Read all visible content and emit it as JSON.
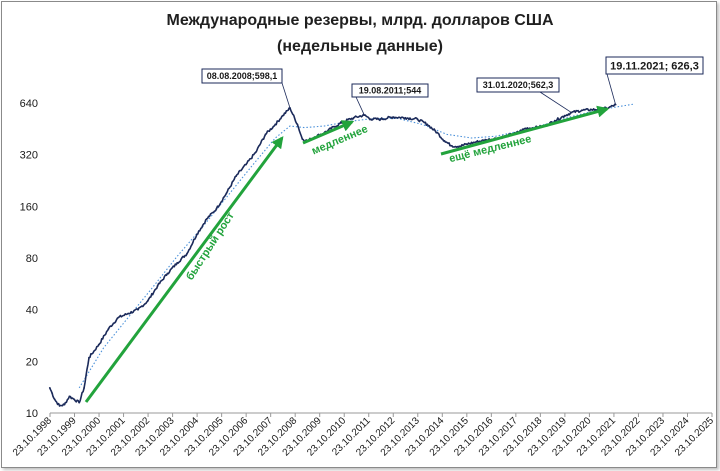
{
  "chart_data": {
    "type": "line",
    "title": "Международные резервы, млрд. долларов США",
    "subtitle": "(недельные данные)",
    "y_scale": "log2",
    "ylim": [
      10,
      640
    ],
    "y_ticks": [
      10,
      20,
      40,
      80,
      160,
      320,
      640
    ],
    "y_tick_labels": [
      "10",
      "20",
      "40",
      "80",
      "160",
      "320",
      "640"
    ],
    "x_tick_labels": [
      "23.10.1998",
      "23.10.1999",
      "23.10.2000",
      "23.10.2001",
      "23.10.2002",
      "23.10.2003",
      "23.10.2004",
      "23.10.2005",
      "23.10.2006",
      "23.10.2007",
      "23.10.2008",
      "23.10.2009",
      "23.10.2010",
      "23.10.2011",
      "23.10.2012",
      "23.10.2013",
      "23.10.2014",
      "23.10.2015",
      "23.10.2016",
      "23.10.2017",
      "23.10.2018",
      "23.10.2019",
      "23.10.2020",
      "23.10.2021",
      "23.10.2022",
      "23.10.2023",
      "23.10.2024",
      "23.10.2025"
    ],
    "series": [
      {
        "values": [
          [
            "1998.8",
            14
          ],
          [
            "1998.9",
            13
          ],
          [
            "1999.0",
            12
          ],
          [
            "1999.2",
            11
          ],
          [
            "1999.4",
            11.2
          ],
          [
            "1999.6",
            12.5
          ],
          [
            "1999.8",
            12
          ],
          [
            "2000.0",
            11.5
          ],
          [
            "2000.2",
            14
          ],
          [
            "2000.4",
            21
          ],
          [
            "2000.8",
            25
          ],
          [
            "2001.2",
            31
          ],
          [
            "2001.6",
            36
          ],
          [
            "2002.0",
            38
          ],
          [
            "2002.4",
            40
          ],
          [
            "2002.8",
            45
          ],
          [
            "2003.2",
            55
          ],
          [
            "2003.6",
            65
          ],
          [
            "2004.0",
            75
          ],
          [
            "2004.4",
            85
          ],
          [
            "2004.8",
            110
          ],
          [
            "2005.2",
            135
          ],
          [
            "2005.6",
            155
          ],
          [
            "2006.0",
            190
          ],
          [
            "2006.4",
            240
          ],
          [
            "2006.8",
            280
          ],
          [
            "2007.2",
            330
          ],
          [
            "2007.6",
            420
          ],
          [
            "2008.0",
            480
          ],
          [
            "2008.3",
            540
          ],
          [
            "2008.6",
            598.1
          ],
          [
            "2008.9",
            480
          ],
          [
            "2009.1",
            395
          ],
          [
            "2009.3",
            385
          ],
          [
            "2009.6",
            405
          ],
          [
            "2010.0",
            430
          ],
          [
            "2010.4",
            465
          ],
          [
            "2010.8",
            500
          ],
          [
            "2011.2",
            525
          ],
          [
            "2011.63",
            544
          ],
          [
            "2011.9",
            515
          ],
          [
            "2012.3",
            515
          ],
          [
            "2012.8",
            530
          ],
          [
            "2013.3",
            525
          ],
          [
            "2013.8",
            515
          ],
          [
            "2014.2",
            480
          ],
          [
            "2014.6",
            430
          ],
          [
            "2014.9",
            385
          ],
          [
            "2015.2",
            360
          ],
          [
            "2015.5",
            358
          ],
          [
            "2015.8",
            368
          ],
          [
            "2016.2",
            380
          ],
          [
            "2016.6",
            390
          ],
          [
            "2017.0",
            398
          ],
          [
            "2017.4",
            410
          ],
          [
            "2017.8",
            425
          ],
          [
            "2018.2",
            455
          ],
          [
            "2018.6",
            460
          ],
          [
            "2019.0",
            470
          ],
          [
            "2019.4",
            505
          ],
          [
            "2019.8",
            540
          ],
          [
            "2020.08",
            562.3
          ],
          [
            "2020.5",
            580
          ],
          [
            "2020.9",
            585
          ],
          [
            "2021.3",
            590
          ],
          [
            "2021.6",
            600
          ],
          [
            "2021.88",
            626.3
          ]
        ]
      },
      {
        "type": "trend",
        "style": "dotted",
        "values": [
          [
            "2000.0",
            14
          ],
          [
            "2001.0",
            24
          ],
          [
            "2002.0",
            36
          ],
          [
            "2003.0",
            54
          ],
          [
            "2004.0",
            82
          ],
          [
            "2005.0",
            120
          ],
          [
            "2006.0",
            180
          ],
          [
            "2007.0",
            270
          ],
          [
            "2008.0",
            400
          ],
          [
            "2008.6",
            470
          ],
          [
            "2009.2",
            460
          ],
          [
            "2010.0",
            470
          ],
          [
            "2011.0",
            500
          ],
          [
            "2012.0",
            520
          ],
          [
            "2013.0",
            520
          ],
          [
            "2014.0",
            480
          ],
          [
            "2015.0",
            420
          ],
          [
            "2016.0",
            400
          ],
          [
            "2017.0",
            410
          ],
          [
            "2018.0",
            440
          ],
          [
            "2019.0",
            480
          ],
          [
            "2020.0",
            530
          ],
          [
            "2021.0",
            575
          ],
          [
            "2022.0",
            610
          ],
          [
            "2022.6",
            630
          ]
        ]
      }
    ],
    "callouts": [
      {
        "label": "08.08.2008;598,1"
      },
      {
        "label": "19.08.2011;544"
      },
      {
        "label": "31.01.2020;562,3"
      },
      {
        "label": "19.11.2021; 626,3"
      }
    ],
    "annotations": [
      {
        "label": "быстрый рост"
      },
      {
        "label": "медленнее"
      },
      {
        "label": "ещё медленнее"
      }
    ],
    "line_color": "#1b2a5a",
    "trend_color": "#4a90d9",
    "arrow_color": "#22a33c",
    "grid": false
  }
}
